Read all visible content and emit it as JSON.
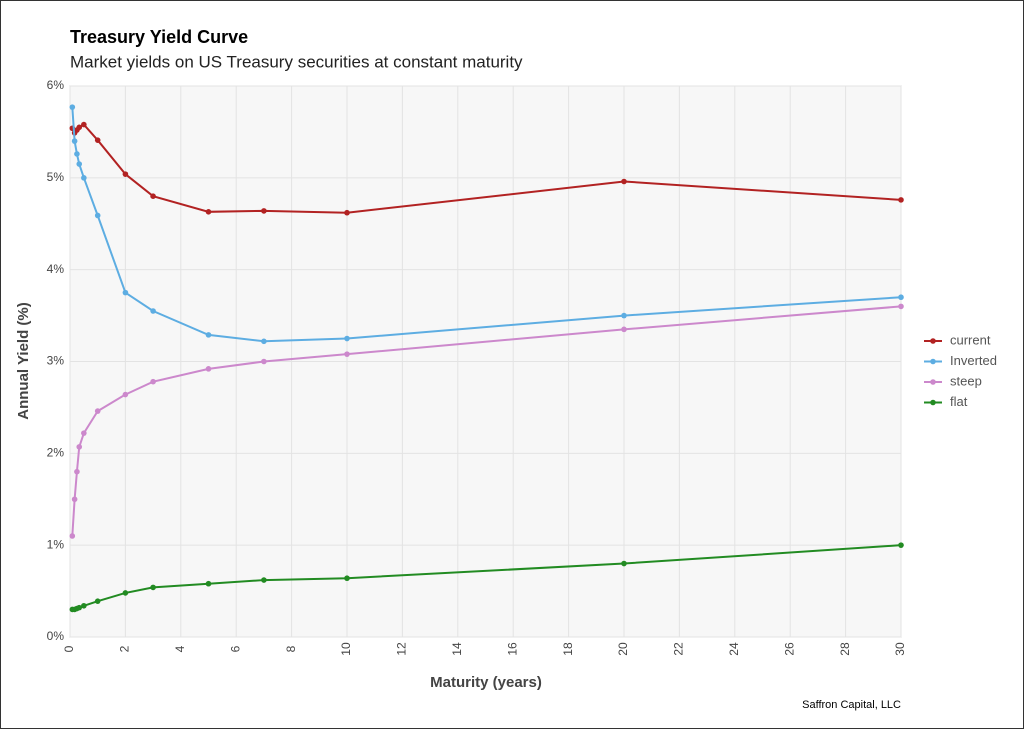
{
  "chart_data": {
    "type": "line",
    "title": "Treasury Yield Curve",
    "subtitle": "Market yields on US Treasury securities at constant maturity",
    "x_label": "Maturity (years)",
    "y_label": "Annual Yield (%)",
    "caption": "Saffron Capital, LLC",
    "x": [
      0.0833,
      0.1667,
      0.25,
      0.3333,
      0.5,
      1,
      2,
      3,
      5,
      7,
      10,
      20,
      30
    ],
    "series": [
      {
        "name": "current",
        "color": "#b22222",
        "values": [
          5.54,
          5.49,
          5.52,
          5.55,
          5.58,
          5.41,
          5.04,
          4.8,
          4.63,
          4.64,
          4.62,
          4.96,
          4.76
        ]
      },
      {
        "name": "Inverted",
        "color": "#5dade2",
        "values": [
          5.77,
          5.4,
          5.26,
          5.15,
          5.0,
          4.59,
          3.75,
          3.55,
          3.29,
          3.22,
          3.25,
          3.5,
          3.7
        ]
      },
      {
        "name": "steep",
        "color": "#cc88cc",
        "values": [
          1.1,
          1.5,
          1.8,
          2.07,
          2.22,
          2.46,
          2.64,
          2.78,
          2.92,
          3.0,
          3.08,
          3.35,
          3.6
        ]
      },
      {
        "name": "flat",
        "color": "#228b22",
        "values": [
          0.3,
          0.3,
          0.31,
          0.32,
          0.34,
          0.39,
          0.48,
          0.54,
          0.58,
          0.62,
          0.64,
          0.8,
          1.0
        ]
      }
    ],
    "xlim": [
      0,
      30
    ],
    "xticks": [
      0,
      2,
      4,
      6,
      8,
      10,
      12,
      14,
      16,
      18,
      20,
      22,
      24,
      26,
      28,
      30
    ],
    "ylim": [
      0,
      6
    ],
    "yticks": [
      {
        "value": 0,
        "label": "0%"
      },
      {
        "value": 1,
        "label": "1%"
      },
      {
        "value": 2,
        "label": "2%"
      },
      {
        "value": 3,
        "label": "3%"
      },
      {
        "value": 4,
        "label": "4%"
      },
      {
        "value": 5,
        "label": "5%"
      },
      {
        "value": 6,
        "label": "6%"
      }
    ],
    "grid": true,
    "legend": "right"
  }
}
